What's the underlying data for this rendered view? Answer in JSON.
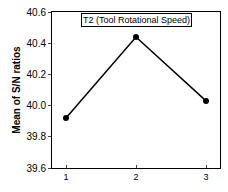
{
  "chart_data": {
    "type": "line",
    "title": "T2 (Tool Rotational Speed)",
    "y_label": "Mean of S/N ratios",
    "x": [
      1,
      2,
      3
    ],
    "values": [
      39.92,
      40.44,
      40.03
    ],
    "color": "#000000",
    "marker": "circle",
    "xlim": [
      0.8,
      3.2
    ],
    "xticks": [
      1,
      2,
      3
    ],
    "ylim": [
      39.6,
      40.6
    ],
    "yticks": [
      39.6,
      39.8,
      {
        "value": 40,
        "label": "40.0"
      },
      40.2,
      40.4,
      40.6
    ],
    "grid": false
  }
}
